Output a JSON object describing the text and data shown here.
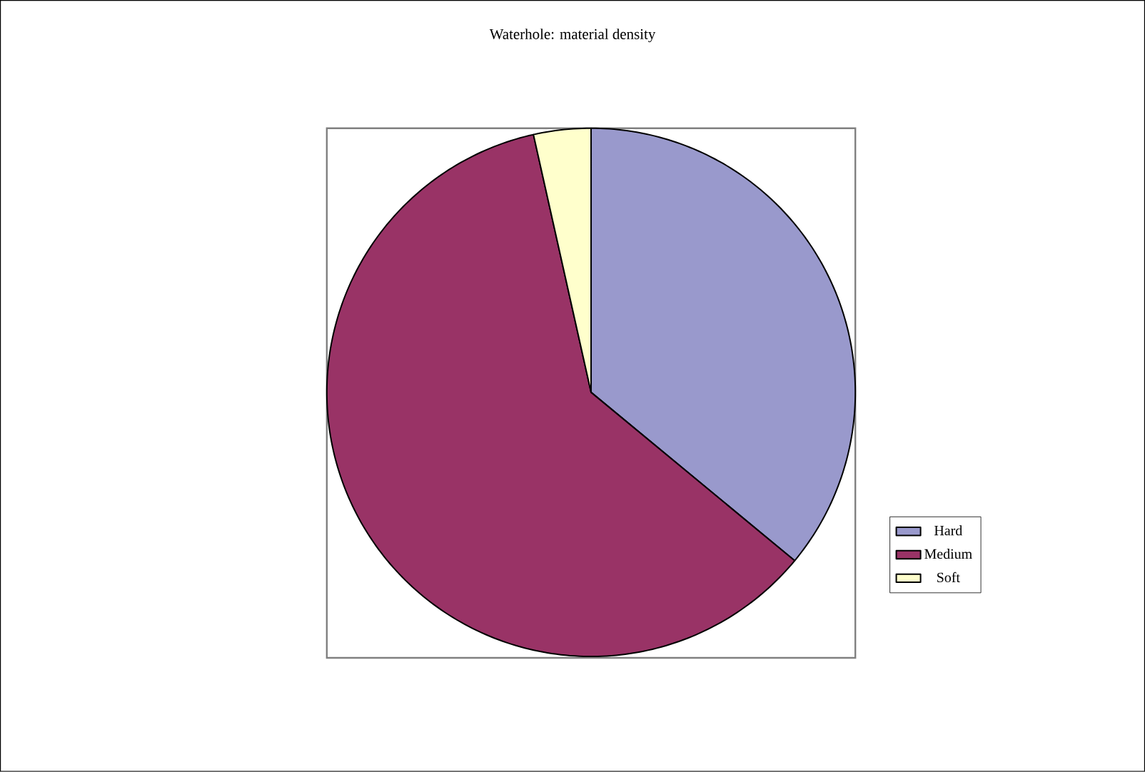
{
  "chart_data": {
    "type": "pie",
    "title": "Waterhole: material density",
    "categories": [
      "Hard",
      "Medium",
      "Soft"
    ],
    "values": [
      36,
      60.5,
      3.5
    ],
    "colors": [
      "#9999cc",
      "#993366",
      "#ffffcc"
    ],
    "legend": "right"
  }
}
